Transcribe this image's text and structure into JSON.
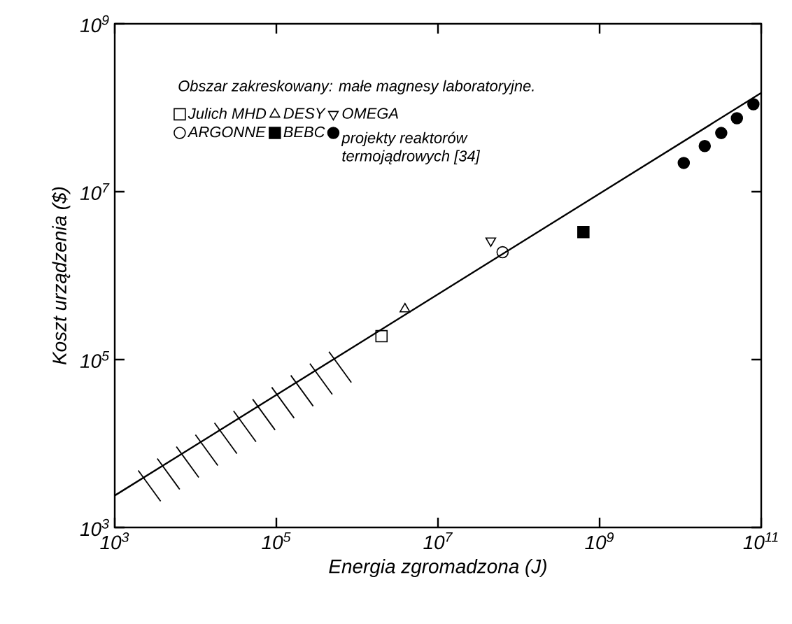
{
  "chart_data": {
    "type": "scatter",
    "xlabel": "Energia zgromadzona (J)",
    "ylabel": "Koszt urządzenia ($)",
    "log": "xy",
    "xlim": [
      1000,
      100000000000
    ],
    "ylim": [
      1000,
      1000000000
    ],
    "xticks": [
      {
        "value": 1000,
        "label": "10$^{3}$"
      },
      {
        "value": 100000,
        "label": "10$^{5}$"
      },
      {
        "value": 10000000,
        "label": "10$^{7}$"
      },
      {
        "value": 1000000000,
        "label": "10$^{9}$"
      },
      {
        "value": 100000000000,
        "label": "10$^{11}$"
      }
    ],
    "yticks": [
      {
        "value": 1000,
        "label": "10$^{3}$"
      },
      {
        "value": 100000,
        "label": "10$^{5}$"
      },
      {
        "value": 10000000,
        "label": "10$^{7}$"
      },
      {
        "value": 1000000000,
        "label": "10$^{9}$"
      }
    ],
    "grid": false,
    "legend": "top left",
    "annotations": [
      "Obszar zakreskowany: małe magnesy laboratoryjne."
    ],
    "series": [
      {
        "type": "line",
        "color": "#000000",
        "marker": "none",
        "x": [
          1000,
          100000000000
        ],
        "values": [
          2400,
          150000000
        ]
      },
      {
        "name": "Julich MHD",
        "color": "#000000",
        "marker": "square",
        "x": [
          2000000
        ],
        "values": [
          190000
        ]
      },
      {
        "name": "DESY",
        "color": "#000000",
        "marker": "triangle",
        "x": [
          3900000
        ],
        "values": [
          400000
        ]
      },
      {
        "name": "OMEGA",
        "color": "#000000",
        "marker": "triangle-down",
        "x": [
          45000000
        ],
        "values": [
          2600000
        ]
      },
      {
        "name": "ARGONNE",
        "color": "#000000",
        "marker": "circle",
        "x": [
          63000000
        ],
        "values": [
          1900000
        ]
      },
      {
        "name": "BEBC",
        "color": "#000000",
        "marker": "square-filled",
        "x": [
          630000000
        ],
        "values": [
          3300000
        ]
      },
      {
        "name": "projekty reaktorów termojądrowych [34]",
        "color": "#000000",
        "marker": "circle-filled",
        "x": [
          11000000000,
          20000000000,
          32000000000,
          50000000000,
          80000000000
        ],
        "values": [
          22000000,
          35000000,
          50000000,
          75000000,
          110000000
        ]
      }
    ]
  }
}
